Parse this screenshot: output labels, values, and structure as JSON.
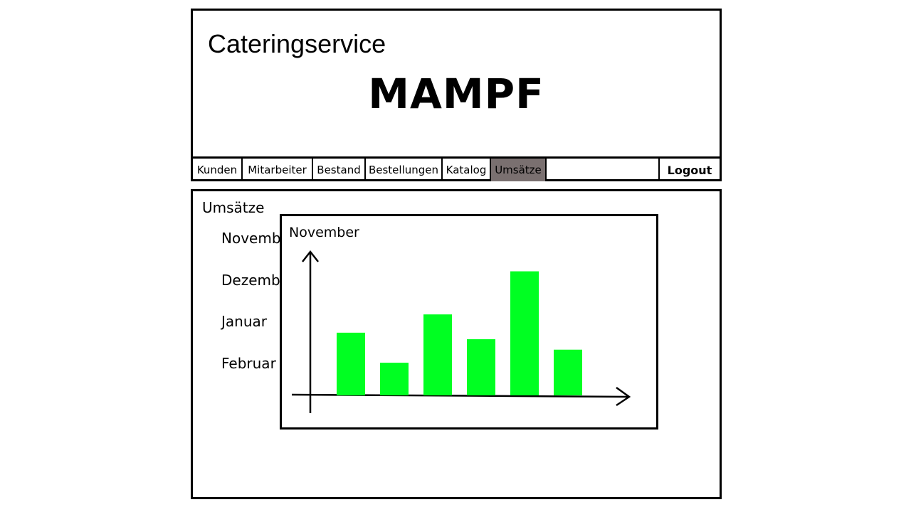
{
  "header": {
    "subtitle": "Cateringservice",
    "title": "MAMPF"
  },
  "nav": {
    "items": [
      {
        "label": "Kunden",
        "active": false
      },
      {
        "label": "Mitarbeiter",
        "active": false
      },
      {
        "label": "Bestand",
        "active": false
      },
      {
        "label": "Bestellungen",
        "active": false
      },
      {
        "label": "Katalog",
        "active": false
      },
      {
        "label": "Umsätze",
        "active": true
      }
    ],
    "logout_label": "Logout"
  },
  "content": {
    "title": "Umsätze",
    "months": [
      "November",
      "Dezember",
      "Januar",
      "Februar"
    ]
  },
  "colors": {
    "active_tab": "#7a7070",
    "bar": "#00ff22"
  },
  "chart_data": {
    "type": "bar",
    "title": "November",
    "xlabel": "",
    "ylabel": "",
    "values": [
      48,
      25,
      62,
      43,
      95,
      35
    ],
    "ylim": [
      0,
      110
    ]
  }
}
